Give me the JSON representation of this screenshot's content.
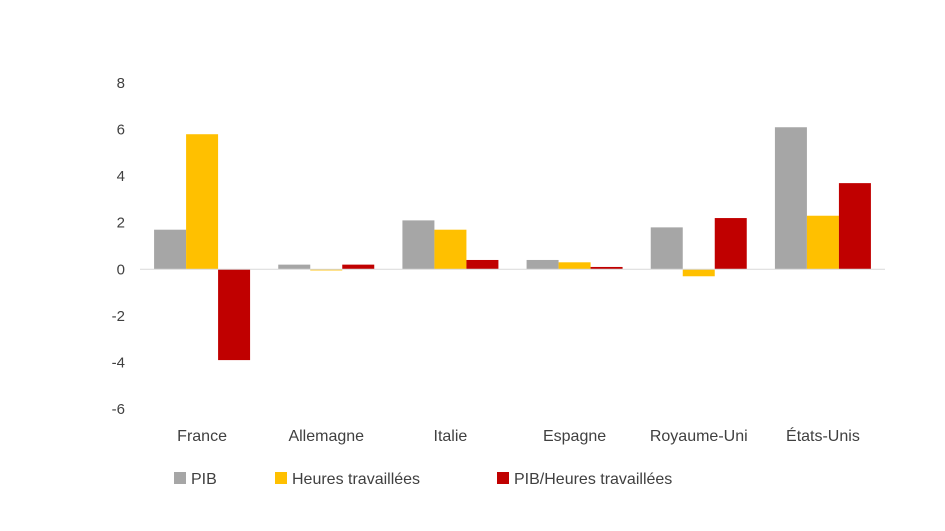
{
  "chart_data": {
    "type": "bar",
    "categories": [
      "France",
      "Allemagne",
      "Italie",
      "Espagne",
      "Royaume-Uni",
      "États-Unis"
    ],
    "series": [
      {
        "name": "PIB",
        "color": "#a6a6a6",
        "values": [
          1.7,
          0.2,
          2.1,
          0.4,
          1.8,
          6.1
        ]
      },
      {
        "name": "Heures travaillées",
        "color": "#ffc000",
        "values": [
          5.8,
          -0.05,
          1.7,
          0.3,
          -0.3,
          2.3
        ]
      },
      {
        "name": "PIB/Heures travaillées",
        "color": "#c00000",
        "values": [
          -3.9,
          0.2,
          0.4,
          0.1,
          2.2,
          3.7
        ]
      }
    ],
    "yticks": [
      "8",
      "6",
      "4",
      "2",
      "0",
      "-2",
      "-4",
      "-6"
    ],
    "ylim": [
      -6,
      8
    ],
    "grid": false,
    "legend_position": "bottom"
  }
}
